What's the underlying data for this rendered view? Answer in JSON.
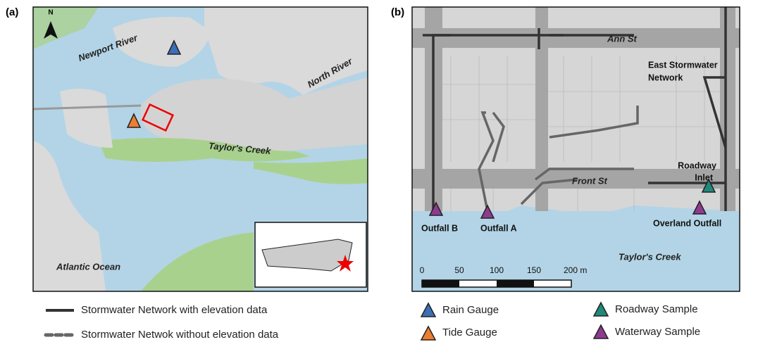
{
  "panel_a": {
    "label": "(a)",
    "north": "N",
    "places": [
      "Newport River",
      "North River",
      "Taylor's Creek",
      "Atlantic Ocean"
    ]
  },
  "panel_b": {
    "label": "(b)",
    "streets": [
      "Ann St",
      "Front St"
    ],
    "network_label": [
      "East Stormwater",
      "Network"
    ],
    "sites": {
      "roadway_inlet": [
        "Roadway",
        "Inlet"
      ],
      "outfall_b": "Outfall B",
      "outfall_a": "Outfall A",
      "overland": "Overland Outfall"
    },
    "water": "Taylor's Creek",
    "scale": [
      "0",
      "50",
      "100",
      "150",
      "200 m"
    ]
  },
  "legend": {
    "lines": [
      "Stormwater Network with elevation data",
      "Stormwater Netwok without elevation data"
    ],
    "markers": [
      "Rain Gauge",
      "Tide Gauge",
      "Roadway Sample",
      "Waterway Sample"
    ]
  }
}
